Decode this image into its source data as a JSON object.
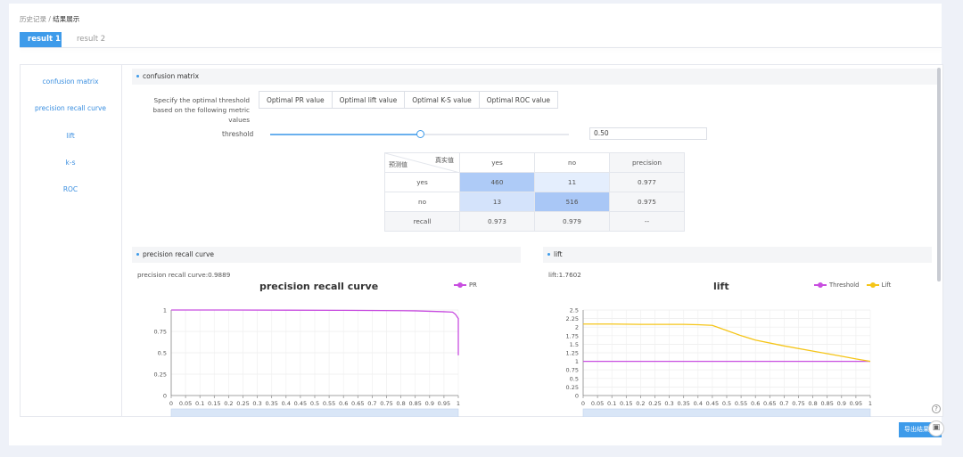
{
  "breadcrumb": {
    "parent": "历史记录",
    "sep": " / ",
    "current": "结果展示"
  },
  "tabs": [
    {
      "label": "result 1"
    },
    {
      "label": "result 2"
    }
  ],
  "sidebar": {
    "items": [
      "confusion matrix",
      "precision recall curve",
      "lift",
      "k-s",
      "ROC"
    ]
  },
  "confusion": {
    "section_title": "confusion matrix",
    "spec_text": "Specify the optimal threshold based on the following metric values",
    "buttons": [
      "Optimal PR value",
      "Optimal lift value",
      "Optimal K-S value",
      "Optimal ROC value"
    ],
    "threshold_label": "threshold",
    "threshold_value": "0.50",
    "threshold_fraction": 0.5,
    "table": {
      "corner_top": "真实值",
      "corner_bottom": "预测值",
      "col_headers": [
        "yes",
        "no",
        "precision"
      ],
      "rows": [
        {
          "label": "yes",
          "cells": [
            "460",
            "11",
            "0.977"
          ]
        },
        {
          "label": "no",
          "cells": [
            "13",
            "516",
            "0.975"
          ]
        },
        {
          "label": "recall",
          "cells": [
            "0.973",
            "0.979",
            "--"
          ]
        }
      ]
    }
  },
  "pr": {
    "section_title": "precision recall curve",
    "metric": "precision recall curve:0.9889",
    "chart_title": "precision recall curve",
    "legend": "PR"
  },
  "lift": {
    "section_title": "lift",
    "metric": "lift:1.7602",
    "chart_title": "lift",
    "legend": [
      "Threshold",
      "Lift"
    ]
  },
  "colors": {
    "accent": "#3e9bea",
    "pr": "#c84ee0",
    "threshold": "#c84ee0",
    "lift": "#f5c518"
  },
  "footer": {
    "export": "导出结果"
  },
  "chart_data": [
    {
      "type": "line",
      "title": "precision recall curve",
      "x": [
        0,
        0.05,
        0.1,
        0.15,
        0.2,
        0.25,
        0.3,
        0.35,
        0.4,
        0.45,
        0.5,
        0.55,
        0.6,
        0.65,
        0.7,
        0.75,
        0.8,
        0.85,
        0.9,
        0.95,
        1
      ],
      "xticks": [
        "0",
        "0.05",
        "0.1",
        "0.15",
        "0.2",
        "0.25",
        "0.3",
        "0.35",
        "0.4",
        "0.45",
        "0.5",
        "0.55",
        "0.6",
        "0.65",
        "0.7",
        "0.75",
        "0.8",
        "0.85",
        "0.9",
        "0.95",
        "1"
      ],
      "yticks": [
        "0",
        "0.25",
        "0.5",
        "0.75",
        "1"
      ],
      "ylim": [
        0,
        1
      ],
      "series": [
        {
          "name": "PR",
          "x": [
            0,
            0.2,
            0.4,
            0.6,
            0.8,
            0.85,
            0.9,
            0.95,
            0.98,
            0.99,
            1,
            1
          ],
          "y": [
            1,
            1,
            0.998,
            0.996,
            0.992,
            0.99,
            0.985,
            0.98,
            0.975,
            0.95,
            0.9,
            0.47
          ]
        }
      ]
    },
    {
      "type": "line",
      "title": "lift",
      "xticks": [
        "0",
        "0.05",
        "0.1",
        "0.15",
        "0.2",
        "0.25",
        "0.3",
        "0.35",
        "0.4",
        "0.45",
        "0.5",
        "0.55",
        "0.6",
        "0.65",
        "0.7",
        "0.75",
        "0.8",
        "0.85",
        "0.9",
        "0.95",
        "1"
      ],
      "yticks": [
        "0",
        "0.25",
        "0.5",
        "0.75",
        "1",
        "1.25",
        "1.5",
        "1.75",
        "2",
        "2.25",
        "2.5"
      ],
      "ylim": [
        0,
        2.5
      ],
      "series": [
        {
          "name": "Threshold",
          "x": [
            0,
            1
          ],
          "y": [
            1,
            1
          ]
        },
        {
          "name": "Lift",
          "x": [
            0,
            0.1,
            0.2,
            0.3,
            0.35,
            0.4,
            0.45,
            0.5,
            0.55,
            0.6,
            0.7,
            0.8,
            0.9,
            0.95,
            1
          ],
          "y": [
            2.09,
            2.09,
            2.08,
            2.08,
            2.08,
            2.07,
            2.05,
            1.9,
            1.75,
            1.62,
            1.45,
            1.3,
            1.15,
            1.07,
            1
          ]
        }
      ]
    }
  ]
}
